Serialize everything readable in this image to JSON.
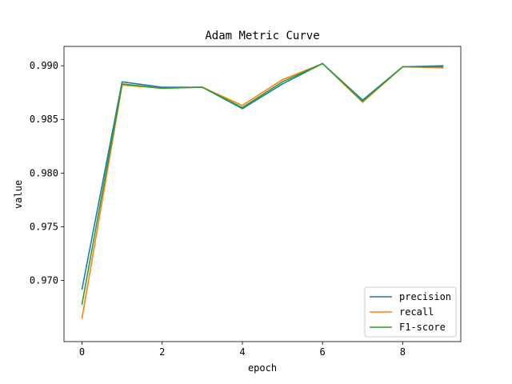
{
  "chart_data": {
    "type": "line",
    "title": "Adam Metric Curve",
    "xlabel": "epoch",
    "ylabel": "value",
    "x": [
      0,
      1,
      2,
      3,
      4,
      5,
      6,
      7,
      8,
      9
    ],
    "xlim": [
      -0.45,
      9.45
    ],
    "ylim": [
      0.9643,
      0.9918
    ],
    "xticks": [
      0,
      2,
      4,
      6,
      8
    ],
    "yticks": [
      0.97,
      0.975,
      0.98,
      0.985,
      0.99
    ],
    "ytick_labels": [
      "0.970",
      "0.975",
      "0.980",
      "0.985",
      "0.990"
    ],
    "grid": false,
    "legend_position": "lower-right",
    "series": [
      {
        "name": "precision",
        "color": "#1f77b4",
        "values": [
          0.9692,
          0.9885,
          0.988,
          0.988,
          0.986,
          0.9883,
          0.9902,
          0.9868,
          0.9899,
          0.99
        ]
      },
      {
        "name": "recall",
        "color": "#ff7f0e",
        "values": [
          0.9665,
          0.9882,
          0.9879,
          0.988,
          0.9863,
          0.9887,
          0.9902,
          0.9866,
          0.9899,
          0.9898
        ]
      },
      {
        "name": "F1-score",
        "color": "#2ca02c",
        "values": [
          0.9678,
          0.9883,
          0.9879,
          0.988,
          0.9861,
          0.9885,
          0.9902,
          0.9867,
          0.9899,
          0.9899
        ]
      }
    ]
  }
}
